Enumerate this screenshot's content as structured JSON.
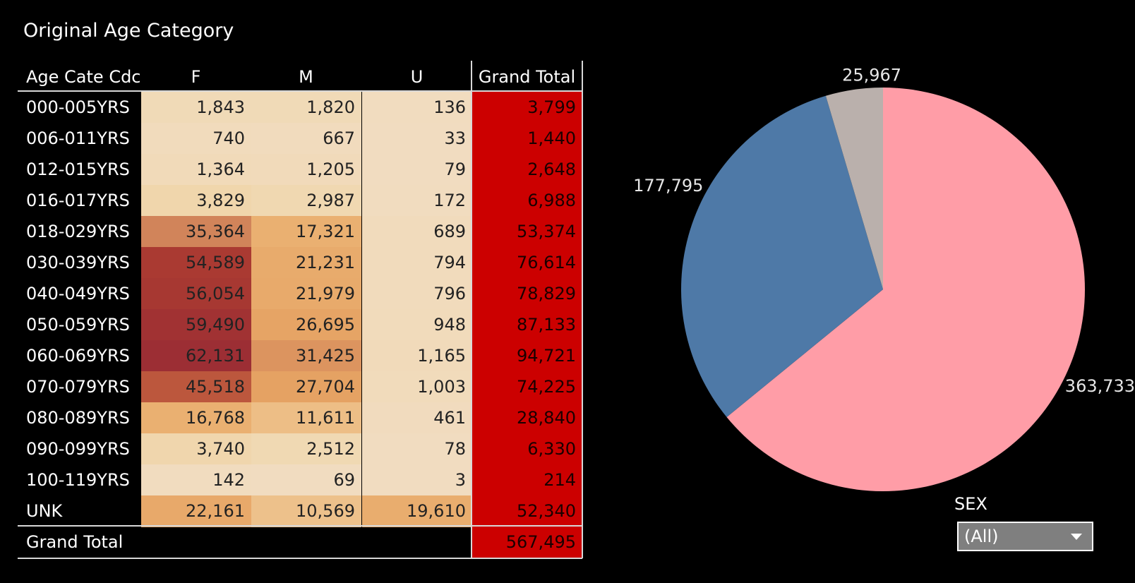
{
  "sheet_title": "Original Age Category",
  "filter": {
    "label": "SEX",
    "selected": "(All)"
  },
  "colors": {
    "background": "#000000",
    "grand_total_cell": "#cc0000",
    "heat_low": "#f1dcc0",
    "heat_high": "#9c2e34",
    "pie_f": "#ff9da7",
    "pie_m": "#4e79a7",
    "pie_u": "#bab0ac"
  },
  "chart_data": [
    {
      "type": "table",
      "row_header": "Age Cate Cdc",
      "columns": [
        "F",
        "M",
        "U"
      ],
      "total_label": "Grand Total",
      "rows": [
        {
          "label": "000-005YRS",
          "values": [
            "1,843",
            "1,820",
            "136"
          ],
          "total": "3,799"
        },
        {
          "label": "006-011YRS",
          "values": [
            "740",
            "667",
            "33"
          ],
          "total": "1,440"
        },
        {
          "label": "012-015YRS",
          "values": [
            "1,364",
            "1,205",
            "79"
          ],
          "total": "2,648"
        },
        {
          "label": "016-017YRS",
          "values": [
            "3,829",
            "2,987",
            "172"
          ],
          "total": "6,988"
        },
        {
          "label": "018-029YRS",
          "values": [
            "35,364",
            "17,321",
            "689"
          ],
          "total": "53,374"
        },
        {
          "label": "030-039YRS",
          "values": [
            "54,589",
            "21,231",
            "794"
          ],
          "total": "76,614"
        },
        {
          "label": "040-049YRS",
          "values": [
            "56,054",
            "21,979",
            "796"
          ],
          "total": "78,829"
        },
        {
          "label": "050-059YRS",
          "values": [
            "59,490",
            "26,695",
            "948"
          ],
          "total": "87,133"
        },
        {
          "label": "060-069YRS",
          "values": [
            "62,131",
            "31,425",
            "1,165"
          ],
          "total": "94,721"
        },
        {
          "label": "070-079YRS",
          "values": [
            "45,518",
            "27,704",
            "1,003"
          ],
          "total": "74,225"
        },
        {
          "label": "080-089YRS",
          "values": [
            "16,768",
            "11,611",
            "461"
          ],
          "total": "28,840"
        },
        {
          "label": "090-099YRS",
          "values": [
            "3,740",
            "2,512",
            "78"
          ],
          "total": "6,330"
        },
        {
          "label": "100-119YRS",
          "values": [
            "142",
            "69",
            "3"
          ],
          "total": "214"
        },
        {
          "label": "UNK",
          "values": [
            "22,161",
            "10,569",
            "19,610"
          ],
          "total": "52,340"
        }
      ],
      "grand_total_row": {
        "label": "Grand Total",
        "total": "567,495"
      }
    },
    {
      "type": "pie",
      "slices": [
        {
          "label": "363,733",
          "value": 363733,
          "color": "#ff9da7"
        },
        {
          "label": "177,795",
          "value": 177795,
          "color": "#4e79a7"
        },
        {
          "label": "25,967",
          "value": 25967,
          "color": "#bab0ac"
        }
      ]
    }
  ]
}
